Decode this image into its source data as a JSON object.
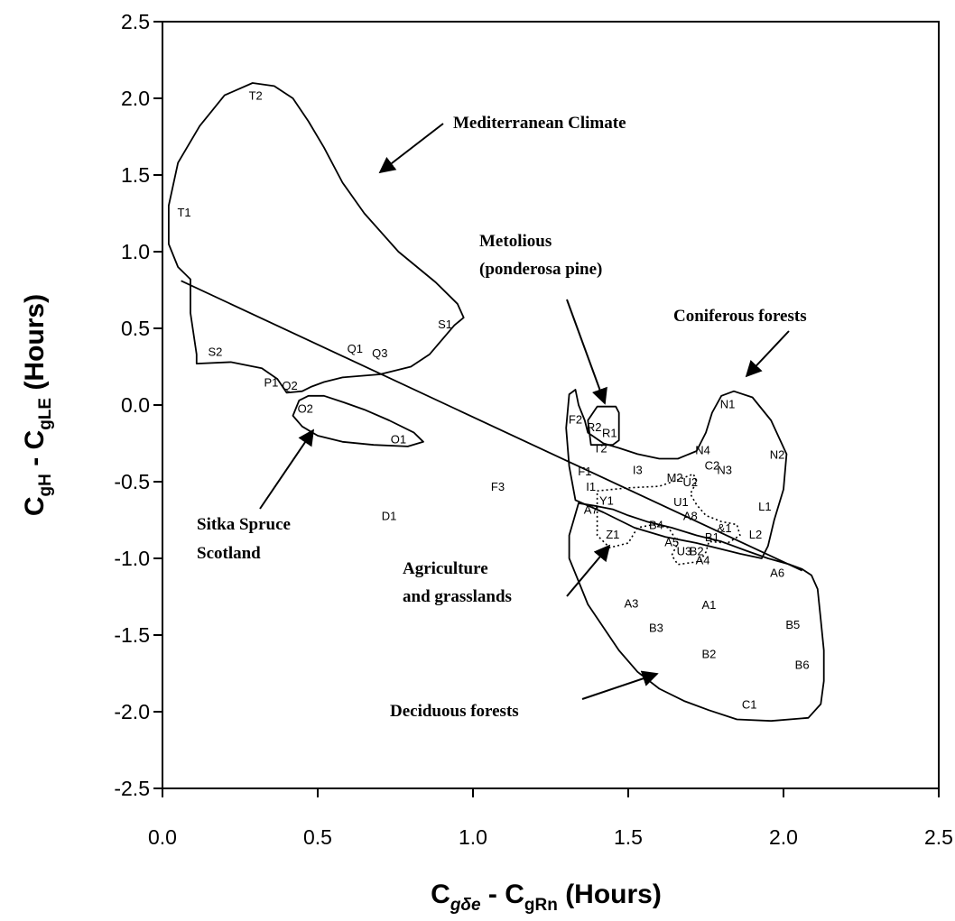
{
  "chart_data": {
    "type": "scatter",
    "xlabel": {
      "main": "C",
      "sub1": "gδe",
      "mid": " - C",
      "sub2": "gRn",
      "unit": " (Hours)"
    },
    "ylabel": {
      "main": "C",
      "sub1": "gH",
      "mid": " - C",
      "sub2": "gLE",
      "unit": " (Hours)"
    },
    "xlim": [
      0,
      2.5
    ],
    "ylim": [
      -2.5,
      2.5
    ],
    "xticks": [
      "0.0",
      "0.5",
      "1.0",
      "1.5",
      "2.0",
      "2.5"
    ],
    "yticks": [
      "2.5",
      "2.0",
      "1.5",
      "1.0",
      "0.5",
      "0.0",
      "-0.5",
      "-1.0",
      "-1.5",
      "-2.0",
      "-2.5"
    ],
    "grid": false,
    "points": [
      {
        "label": "T2",
        "x": 0.3,
        "y": 2.02
      },
      {
        "label": "T1",
        "x": 0.07,
        "y": 1.26
      },
      {
        "label": "S1",
        "x": 0.91,
        "y": 0.53
      },
      {
        "label": "S2",
        "x": 0.17,
        "y": 0.35
      },
      {
        "label": "Q1",
        "x": 0.62,
        "y": 0.37
      },
      {
        "label": "Q3",
        "x": 0.7,
        "y": 0.34
      },
      {
        "label": "P1",
        "x": 0.35,
        "y": 0.15
      },
      {
        "label": "Q2",
        "x": 0.41,
        "y": 0.13
      },
      {
        "label": "O2",
        "x": 0.46,
        "y": -0.02
      },
      {
        "label": "O1",
        "x": 0.76,
        "y": -0.22
      },
      {
        "label": "F3",
        "x": 1.08,
        "y": -0.53
      },
      {
        "label": "D1",
        "x": 0.73,
        "y": -0.72
      },
      {
        "label": "F2",
        "x": 1.33,
        "y": -0.09
      },
      {
        "label": "R2",
        "x": 1.39,
        "y": -0.14
      },
      {
        "label": "R1",
        "x": 1.44,
        "y": -0.18
      },
      {
        "label": "T2",
        "x": 1.41,
        "y": -0.28
      },
      {
        "label": "F1",
        "x": 1.36,
        "y": -0.43
      },
      {
        "label": "I3",
        "x": 1.53,
        "y": -0.42
      },
      {
        "label": "I1",
        "x": 1.38,
        "y": -0.53
      },
      {
        "label": "N4",
        "x": 1.74,
        "y": -0.29
      },
      {
        "label": "C2",
        "x": 1.77,
        "y": -0.39
      },
      {
        "label": "N3",
        "x": 1.81,
        "y": -0.42
      },
      {
        "label": "M2",
        "x": 1.65,
        "y": -0.47
      },
      {
        "label": "U2",
        "x": 1.7,
        "y": -0.5
      },
      {
        "label": "N1",
        "x": 1.82,
        "y": 0.01
      },
      {
        "label": "N2",
        "x": 1.98,
        "y": -0.32
      },
      {
        "label": "L1",
        "x": 1.94,
        "y": -0.66
      },
      {
        "label": "L2",
        "x": 1.91,
        "y": -0.84
      },
      {
        "label": "Y1",
        "x": 1.43,
        "y": -0.62
      },
      {
        "label": "A7",
        "x": 1.38,
        "y": -0.68
      },
      {
        "label": "U1",
        "x": 1.67,
        "y": -0.63
      },
      {
        "label": "A8",
        "x": 1.7,
        "y": -0.72
      },
      {
        "label": "&1",
        "x": 1.81,
        "y": -0.8
      },
      {
        "label": "B4",
        "x": 1.59,
        "y": -0.78
      },
      {
        "label": "Z1",
        "x": 1.45,
        "y": -0.84
      },
      {
        "label": "B1",
        "x": 1.77,
        "y": -0.86
      },
      {
        "label": "A5",
        "x": 1.64,
        "y": -0.89
      },
      {
        "label": "U3",
        "x": 1.68,
        "y": -0.95
      },
      {
        "label": "B2",
        "x": 1.72,
        "y": -0.95
      },
      {
        "label": "A4",
        "x": 1.74,
        "y": -1.01
      },
      {
        "label": "A6",
        "x": 1.98,
        "y": -1.09
      },
      {
        "label": "A3",
        "x": 1.51,
        "y": -1.29
      },
      {
        "label": "A1",
        "x": 1.76,
        "y": -1.3
      },
      {
        "label": "B3",
        "x": 1.59,
        "y": -1.45
      },
      {
        "label": "B5",
        "x": 2.03,
        "y": -1.43
      },
      {
        "label": "B2",
        "x": 1.76,
        "y": -1.62
      },
      {
        "label": "B6",
        "x": 2.06,
        "y": -1.69
      },
      {
        "label": "C1",
        "x": 1.89,
        "y": -1.95
      }
    ],
    "trendline": [
      [
        0.06,
        0.81
      ],
      [
        2.06,
        -1.08
      ]
    ],
    "regions": [
      {
        "name": "Mediterranean Climate",
        "outline": [
          [
            0.29,
            2.1
          ],
          [
            0.2,
            2.02
          ],
          [
            0.12,
            1.82
          ],
          [
            0.05,
            1.58
          ],
          [
            0.02,
            1.3
          ],
          [
            0.02,
            1.05
          ],
          [
            0.05,
            0.9
          ],
          [
            0.09,
            0.82
          ],
          [
            0.09,
            0.6
          ],
          [
            0.11,
            0.33
          ],
          [
            0.11,
            0.27
          ],
          [
            0.22,
            0.28
          ],
          [
            0.32,
            0.24
          ],
          [
            0.37,
            0.17
          ],
          [
            0.4,
            0.08
          ],
          [
            0.45,
            0.09
          ],
          [
            0.48,
            0.12
          ],
          [
            0.52,
            0.15
          ],
          [
            0.58,
            0.18
          ],
          [
            0.7,
            0.2
          ],
          [
            0.8,
            0.25
          ],
          [
            0.86,
            0.33
          ],
          [
            0.94,
            0.52
          ],
          [
            0.97,
            0.57
          ],
          [
            0.95,
            0.66
          ],
          [
            0.88,
            0.8
          ],
          [
            0.76,
            1.0
          ],
          [
            0.65,
            1.25
          ],
          [
            0.58,
            1.45
          ],
          [
            0.52,
            1.68
          ],
          [
            0.47,
            1.85
          ],
          [
            0.42,
            2.0
          ],
          [
            0.36,
            2.08
          ],
          [
            0.29,
            2.1
          ]
        ]
      },
      {
        "name": "Sitka Spruce Scotland",
        "outline": [
          [
            0.44,
            0.03
          ],
          [
            0.47,
            0.06
          ],
          [
            0.52,
            0.06
          ],
          [
            0.58,
            0.02
          ],
          [
            0.65,
            -0.03
          ],
          [
            0.73,
            -0.1
          ],
          [
            0.81,
            -0.18
          ],
          [
            0.84,
            -0.24
          ],
          [
            0.79,
            -0.27
          ],
          [
            0.68,
            -0.26
          ],
          [
            0.58,
            -0.24
          ],
          [
            0.5,
            -0.2
          ],
          [
            0.45,
            -0.14
          ],
          [
            0.42,
            -0.07
          ],
          [
            0.44,
            0.03
          ]
        ]
      },
      {
        "name": "Metolious (ponderosa pine)",
        "outline": [
          [
            1.4,
            -0.01
          ],
          [
            1.46,
            -0.01
          ],
          [
            1.47,
            -0.05
          ],
          [
            1.47,
            -0.23
          ],
          [
            1.45,
            -0.26
          ],
          [
            1.38,
            -0.26
          ],
          [
            1.37,
            -0.1
          ],
          [
            1.4,
            -0.01
          ]
        ]
      },
      {
        "name": "Coniferous forests",
        "outline": [
          [
            1.31,
            0.07
          ],
          [
            1.33,
            0.1
          ],
          [
            1.34,
            0.0
          ],
          [
            1.36,
            -0.1
          ],
          [
            1.37,
            -0.18
          ],
          [
            1.42,
            -0.25
          ],
          [
            1.47,
            -0.28
          ],
          [
            1.53,
            -0.32
          ],
          [
            1.6,
            -0.35
          ],
          [
            1.66,
            -0.35
          ],
          [
            1.72,
            -0.3
          ],
          [
            1.75,
            -0.18
          ],
          [
            1.77,
            -0.05
          ],
          [
            1.8,
            0.06
          ],
          [
            1.84,
            0.09
          ],
          [
            1.9,
            0.05
          ],
          [
            1.96,
            -0.1
          ],
          [
            2.01,
            -0.32
          ],
          [
            2.0,
            -0.55
          ],
          [
            1.97,
            -0.75
          ],
          [
            1.95,
            -0.92
          ],
          [
            1.93,
            -1.0
          ],
          [
            1.86,
            -0.97
          ],
          [
            1.8,
            -0.94
          ],
          [
            1.72,
            -0.9
          ],
          [
            1.62,
            -0.86
          ],
          [
            1.52,
            -0.8
          ],
          [
            1.42,
            -0.7
          ],
          [
            1.33,
            -0.62
          ],
          [
            1.31,
            -0.4
          ],
          [
            1.3,
            -0.15
          ],
          [
            1.31,
            0.07
          ]
        ]
      },
      {
        "name": "Deciduous forests",
        "outline": [
          [
            1.34,
            -0.64
          ],
          [
            1.4,
            -0.66
          ],
          [
            1.45,
            -0.68
          ],
          [
            1.5,
            -0.72
          ],
          [
            1.56,
            -0.76
          ],
          [
            1.64,
            -0.8
          ],
          [
            1.72,
            -0.85
          ],
          [
            1.8,
            -0.89
          ],
          [
            1.88,
            -0.95
          ],
          [
            1.95,
            -1.0
          ],
          [
            2.02,
            -1.04
          ],
          [
            2.06,
            -1.07
          ],
          [
            2.09,
            -1.11
          ],
          [
            2.11,
            -1.2
          ],
          [
            2.12,
            -1.4
          ],
          [
            2.13,
            -1.6
          ],
          [
            2.13,
            -1.8
          ],
          [
            2.12,
            -1.95
          ],
          [
            2.08,
            -2.04
          ],
          [
            1.96,
            -2.06
          ],
          [
            1.85,
            -2.05
          ],
          [
            1.76,
            -1.99
          ],
          [
            1.68,
            -1.93
          ],
          [
            1.6,
            -1.85
          ],
          [
            1.53,
            -1.74
          ],
          [
            1.47,
            -1.6
          ],
          [
            1.42,
            -1.45
          ],
          [
            1.37,
            -1.3
          ],
          [
            1.34,
            -1.15
          ],
          [
            1.31,
            -1.0
          ],
          [
            1.31,
            -0.85
          ],
          [
            1.34,
            -0.64
          ]
        ]
      }
    ],
    "dotted_regions": [
      [
        [
          1.4,
          -0.56
        ],
        [
          1.5,
          -0.54
        ],
        [
          1.6,
          -0.53
        ],
        [
          1.67,
          -0.48
        ],
        [
          1.71,
          -0.45
        ],
        [
          1.72,
          -0.5
        ],
        [
          1.7,
          -0.58
        ],
        [
          1.72,
          -0.65
        ],
        [
          1.75,
          -0.72
        ],
        [
          1.8,
          -0.76
        ],
        [
          1.85,
          -0.78
        ],
        [
          1.86,
          -0.85
        ],
        [
          1.82,
          -0.9
        ],
        [
          1.76,
          -0.89
        ],
        [
          1.75,
          -0.96
        ],
        [
          1.73,
          -1.02
        ],
        [
          1.66,
          -1.04
        ],
        [
          1.64,
          -0.98
        ],
        [
          1.66,
          -0.9
        ],
        [
          1.63,
          -0.8
        ],
        [
          1.58,
          -0.78
        ],
        [
          1.53,
          -0.8
        ],
        [
          1.5,
          -0.9
        ],
        [
          1.44,
          -0.93
        ],
        [
          1.4,
          -0.85
        ],
        [
          1.4,
          -0.73
        ],
        [
          1.4,
          -0.56
        ]
      ]
    ]
  },
  "annotations": {
    "mediterranean": "Mediterranean Climate",
    "metolious_line1": "Metolious",
    "metolious_line2": "(ponderosa pine)",
    "coniferous": "Coniferous forests",
    "sitka_line1": "Sitka Spruce",
    "sitka_line2": "Scotland",
    "agriculture_line1": "Agriculture",
    "agriculture_line2": "and grasslands",
    "deciduous": "Deciduous forests"
  }
}
